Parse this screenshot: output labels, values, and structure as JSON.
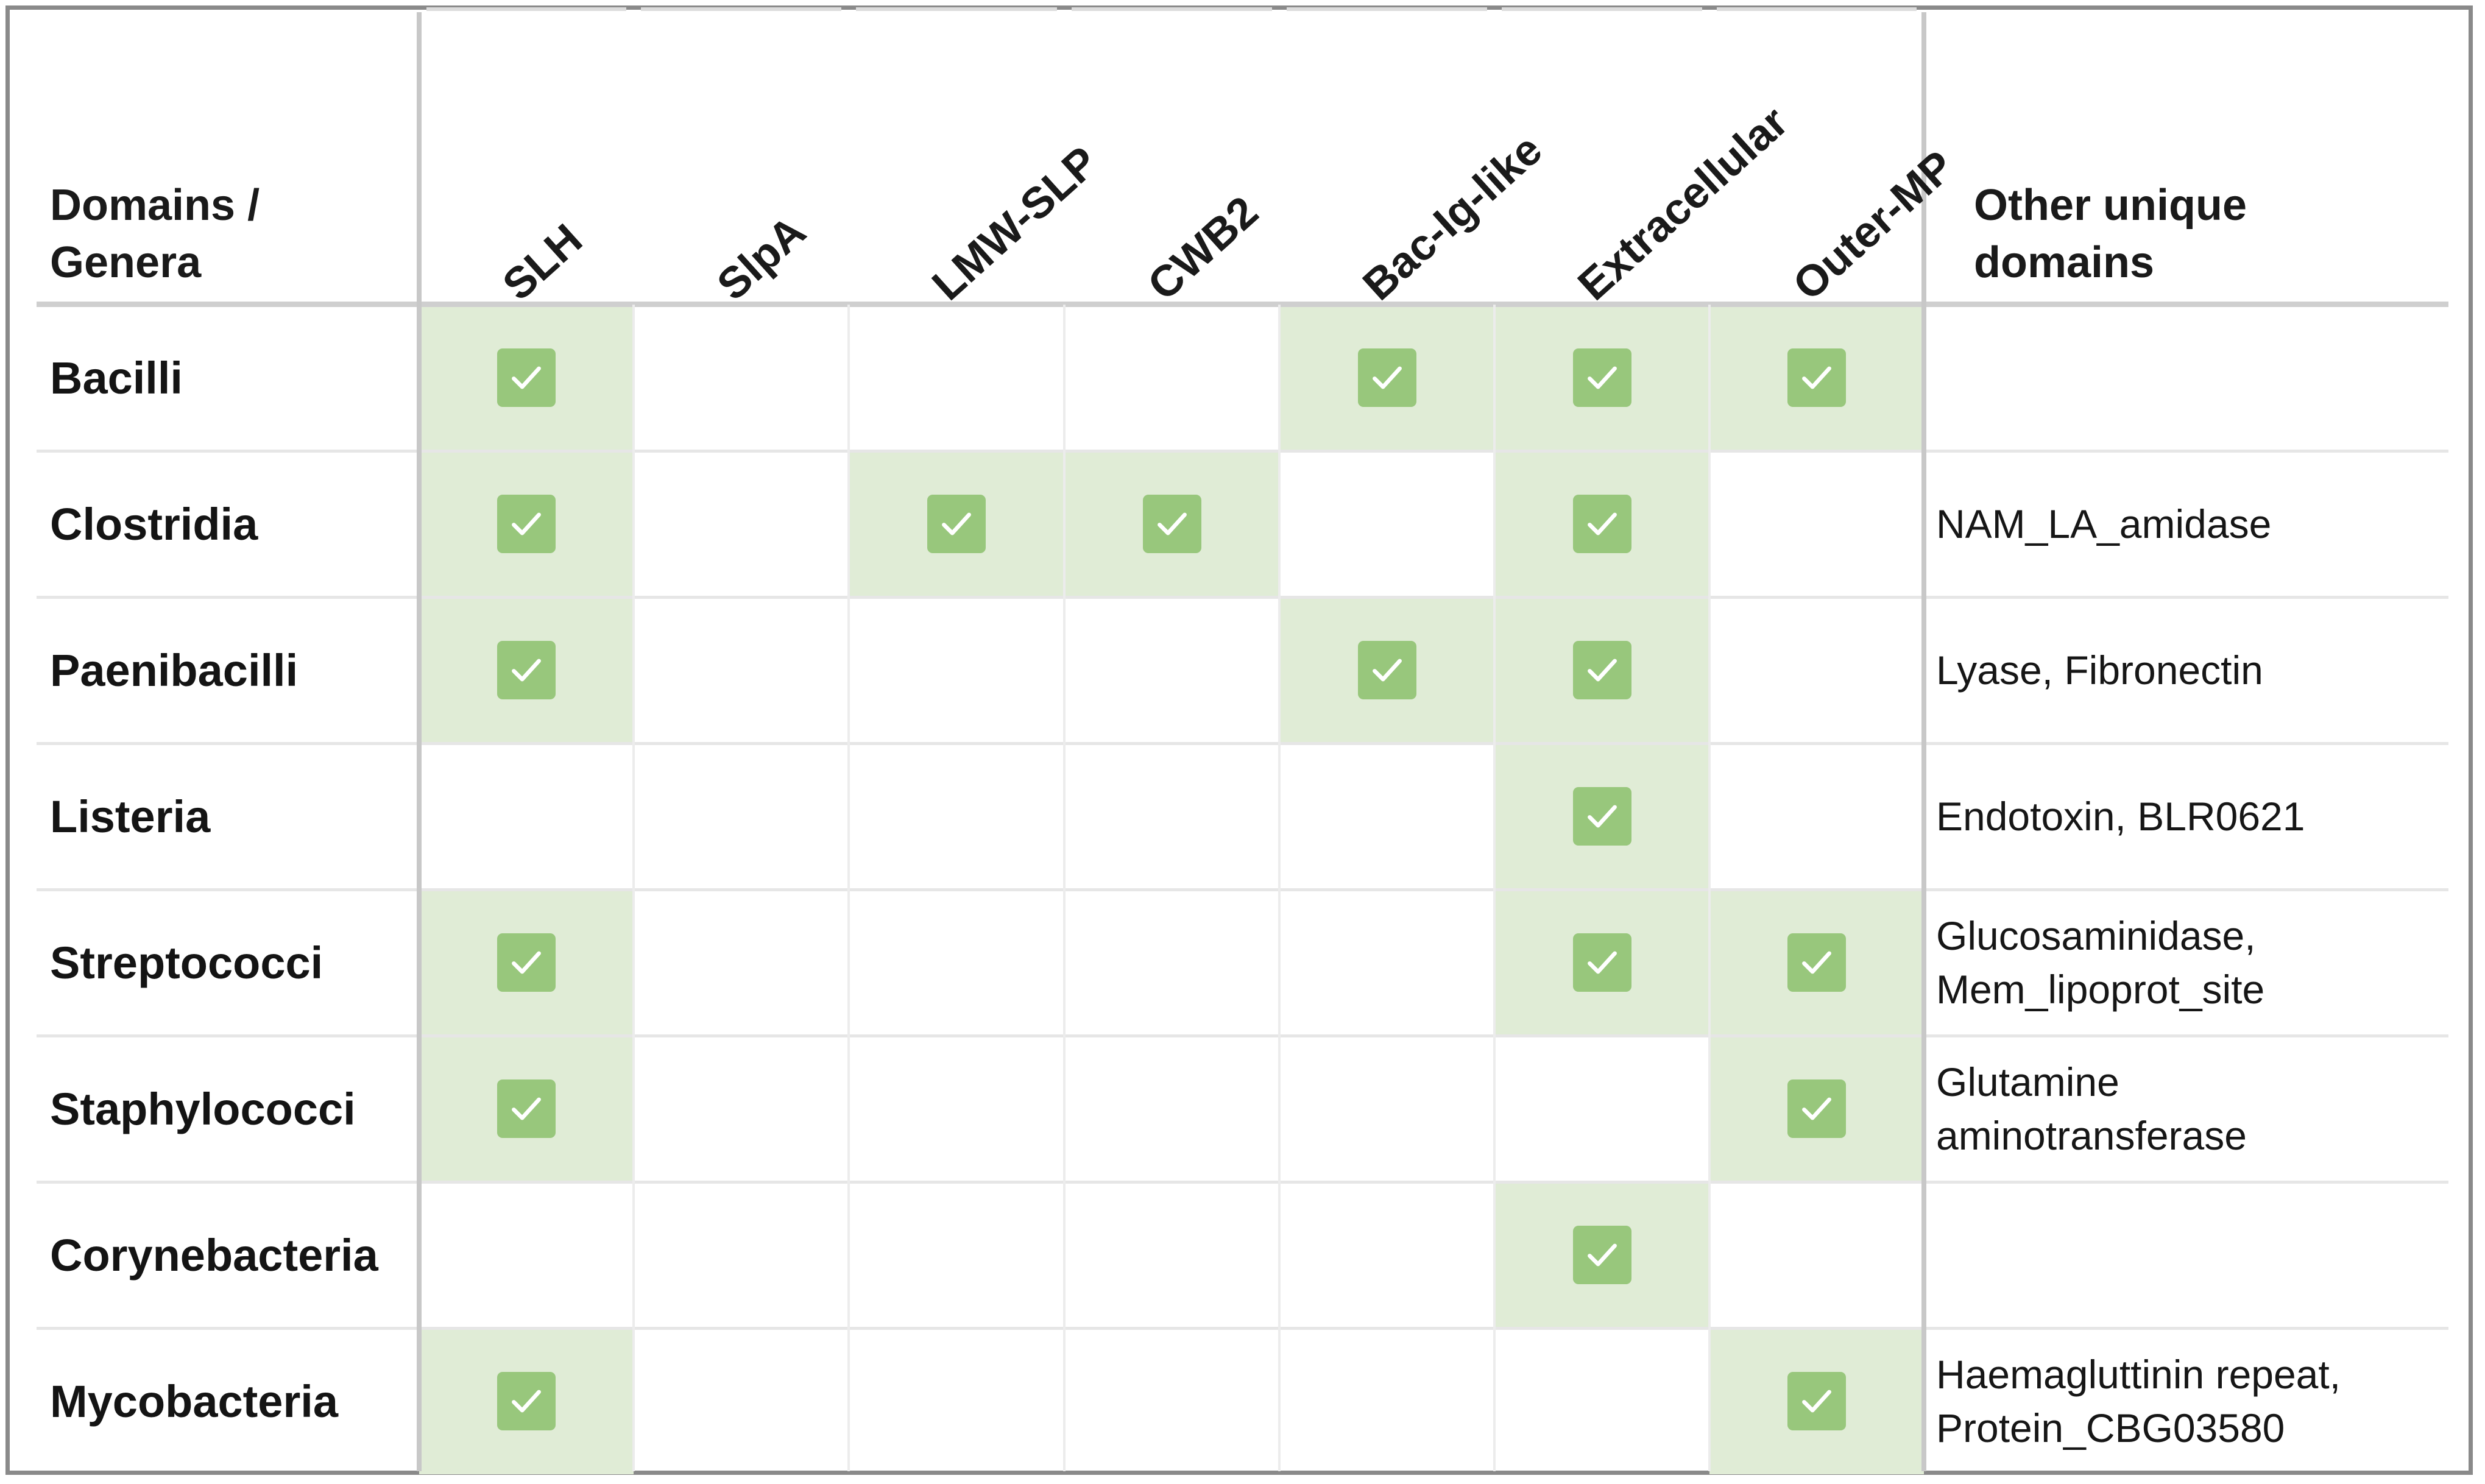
{
  "table": {
    "corner_label": "Domains /\nGenera",
    "columns": [
      "SLH",
      "SlpA",
      "LMW-SLP",
      "CWB2",
      "Bac-Ig-like",
      "Extracellular",
      "Outer-MP"
    ],
    "other_header": "Other unique\ndomains",
    "rows": [
      {
        "genus": "Bacilli",
        "checks": [
          true,
          false,
          false,
          false,
          true,
          true,
          true
        ],
        "other": ""
      },
      {
        "genus": "Clostridia",
        "checks": [
          true,
          false,
          true,
          true,
          false,
          true,
          false
        ],
        "other": "NAM_LA_amidase"
      },
      {
        "genus": "Paenibacilli",
        "checks": [
          true,
          false,
          false,
          false,
          true,
          true,
          false
        ],
        "other": "Lyase, Fibronectin"
      },
      {
        "genus": "Listeria",
        "checks": [
          false,
          false,
          false,
          false,
          false,
          true,
          false
        ],
        "other": "Endotoxin, BLR0621"
      },
      {
        "genus": "Streptococci",
        "checks": [
          true,
          false,
          false,
          false,
          false,
          true,
          true
        ],
        "other": "Glucosaminidase,\nMem_lipoprot_site"
      },
      {
        "genus": "Staphylococci",
        "checks": [
          true,
          false,
          false,
          false,
          false,
          false,
          true
        ],
        "other": "Glutamine\naminotransferase"
      },
      {
        "genus": "Corynebacteria",
        "checks": [
          false,
          false,
          false,
          false,
          false,
          true,
          false
        ],
        "other": ""
      },
      {
        "genus": "Mycobacteria",
        "checks": [
          true,
          false,
          false,
          false,
          false,
          false,
          true
        ],
        "other": "Haemagluttinin repeat,\nProtein_CBG03580"
      }
    ]
  },
  "colors": {
    "highlight": "#e0ecd6",
    "checkbox": "#98c77c",
    "checkmark": "#ffffff",
    "border": "#8a8a8a"
  },
  "icons": {
    "check": "checkbox-checked-icon"
  }
}
